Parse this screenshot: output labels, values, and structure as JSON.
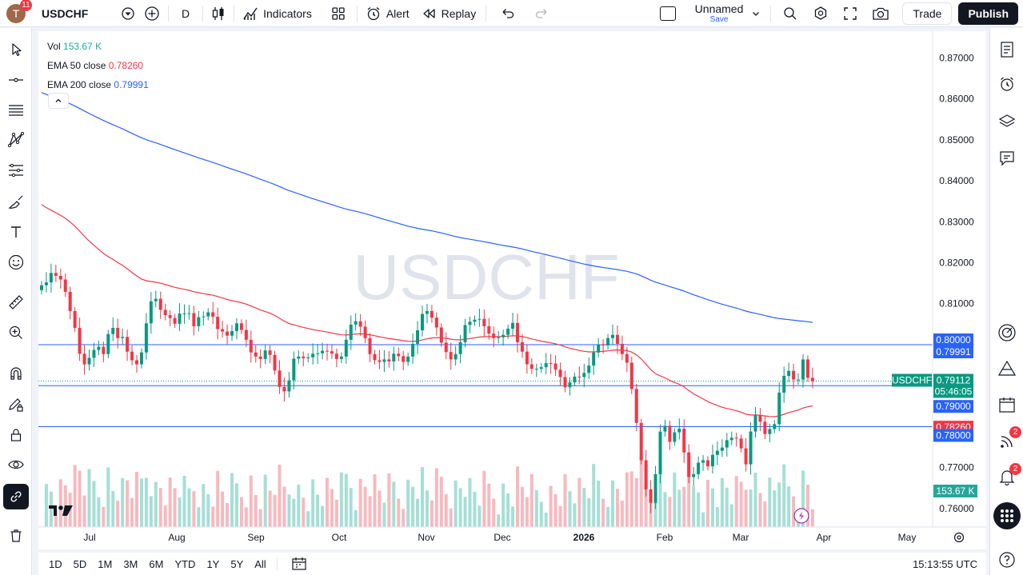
{
  "header": {
    "avatar_letter": "T",
    "notifications": "11",
    "symbol": "USDCHF",
    "interval": "D",
    "indicators_label": "Indicators",
    "alert_label": "Alert",
    "replay_label": "Replay",
    "layout_name": "Unnamed",
    "layout_sub": "Save",
    "trade_label": "Trade",
    "publish_label": "Publish"
  },
  "legend": {
    "vol_label": "Vol",
    "vol_value": "153.67 K",
    "ema50_label": "EMA 50 close",
    "ema50_value": "0.78260",
    "ema200_label": "EMA 200 close",
    "ema200_value": "0.79991"
  },
  "watermark": "USDCHF",
  "price_labels": {
    "current_symbol": "USDCHF",
    "current_price": "0.79112",
    "countdown": "05:46:05",
    "line_0800": "0.80000",
    "ema200": "0.79991",
    "line_0790": "0.79000",
    "ema50": "0.78260",
    "line_0780": "0.78000",
    "volume": "153.67 K"
  },
  "bottom": {
    "ranges": [
      "1D",
      "5D",
      "1M",
      "3M",
      "6M",
      "YTD",
      "1Y",
      "5Y",
      "All"
    ],
    "clock": "15:13:55 UTC"
  },
  "right_badges": {
    "feed": "2",
    "alerts": "2"
  },
  "colors": {
    "up": "#089981",
    "down": "#f23645",
    "ema50": "#f23645",
    "ema200": "#2962ff",
    "hline": "#2962ff"
  },
  "chart_data": {
    "type": "candlestick",
    "y_ticks": [
      "0.87000",
      "0.86000",
      "0.85000",
      "0.84000",
      "0.83000",
      "0.82000",
      "0.81000",
      "0.80000",
      "0.79000",
      "0.78000",
      "0.77000",
      "0.76000"
    ],
    "x_ticks": [
      "Jul",
      "Aug",
      "Sep",
      "Oct",
      "Nov",
      "Dec",
      "2026",
      "Feb",
      "Mar",
      "Apr",
      "May"
    ],
    "ylim": [
      0.7555,
      0.8765
    ],
    "horizontal_lines": [
      0.8,
      0.79,
      0.78
    ],
    "closes": [
      0.8145,
      0.8152,
      0.8175,
      0.8168,
      0.8159,
      0.8129,
      0.8082,
      0.8041,
      0.7978,
      0.7952,
      0.7968,
      0.7987,
      0.7995,
      0.7977,
      0.8026,
      0.8041,
      0.8016,
      0.8019,
      0.7983,
      0.7962,
      0.7952,
      0.7981,
      0.8052,
      0.8106,
      0.8112,
      0.8085,
      0.8072,
      0.8065,
      0.8051,
      0.8076,
      0.8076,
      0.8077,
      0.8045,
      0.8067,
      0.8069,
      0.8079,
      0.8068,
      0.8038,
      0.8032,
      0.8022,
      0.8033,
      0.8052,
      0.8036,
      0.8012,
      0.7981,
      0.7971,
      0.7965,
      0.7986,
      0.7975,
      0.7937,
      0.7897,
      0.7886,
      0.7913,
      0.7966,
      0.7971,
      0.7967,
      0.7969,
      0.7978,
      0.7979,
      0.7985,
      0.7984,
      0.7978,
      0.7965,
      0.7971,
      0.8012,
      0.8049,
      0.8057,
      0.8044,
      0.8016,
      0.7977,
      0.7962,
      0.7958,
      0.7964,
      0.7959,
      0.7978,
      0.7972,
      0.7958,
      0.7971,
      0.8002,
      0.8035,
      0.8075,
      0.8082,
      0.8066,
      0.8042,
      0.8005,
      0.7982,
      0.7964,
      0.7977,
      0.8006,
      0.8048,
      0.8056,
      0.8061,
      0.8063,
      0.8045,
      0.8027,
      0.8016,
      0.8018,
      0.8024,
      0.8039,
      0.8053,
      0.8006,
      0.7983,
      0.7952,
      0.7941,
      0.7941,
      0.7945,
      0.7955,
      0.7954,
      0.7939,
      0.7921,
      0.7896,
      0.7908,
      0.7922,
      0.7921,
      0.7931,
      0.7949,
      0.7981,
      0.8001,
      0.7998,
      0.8016,
      0.8024,
      0.8002,
      0.7977,
      0.7956,
      0.7892,
      0.7809,
      0.7718,
      0.7647,
      0.7614,
      0.7684,
      0.7788,
      0.7802,
      0.7763,
      0.7786,
      0.7795,
      0.7737,
      0.7677,
      0.7684,
      0.7712,
      0.7718,
      0.7703,
      0.7731,
      0.7741,
      0.7749,
      0.7767,
      0.7773,
      0.7771,
      0.7747,
      0.7708,
      0.7788,
      0.7828,
      0.7812,
      0.7782,
      0.7794,
      0.7806,
      0.7883,
      0.7924,
      0.7936,
      0.7915,
      0.7915,
      0.7964,
      0.7919,
      0.7911
    ]
  }
}
